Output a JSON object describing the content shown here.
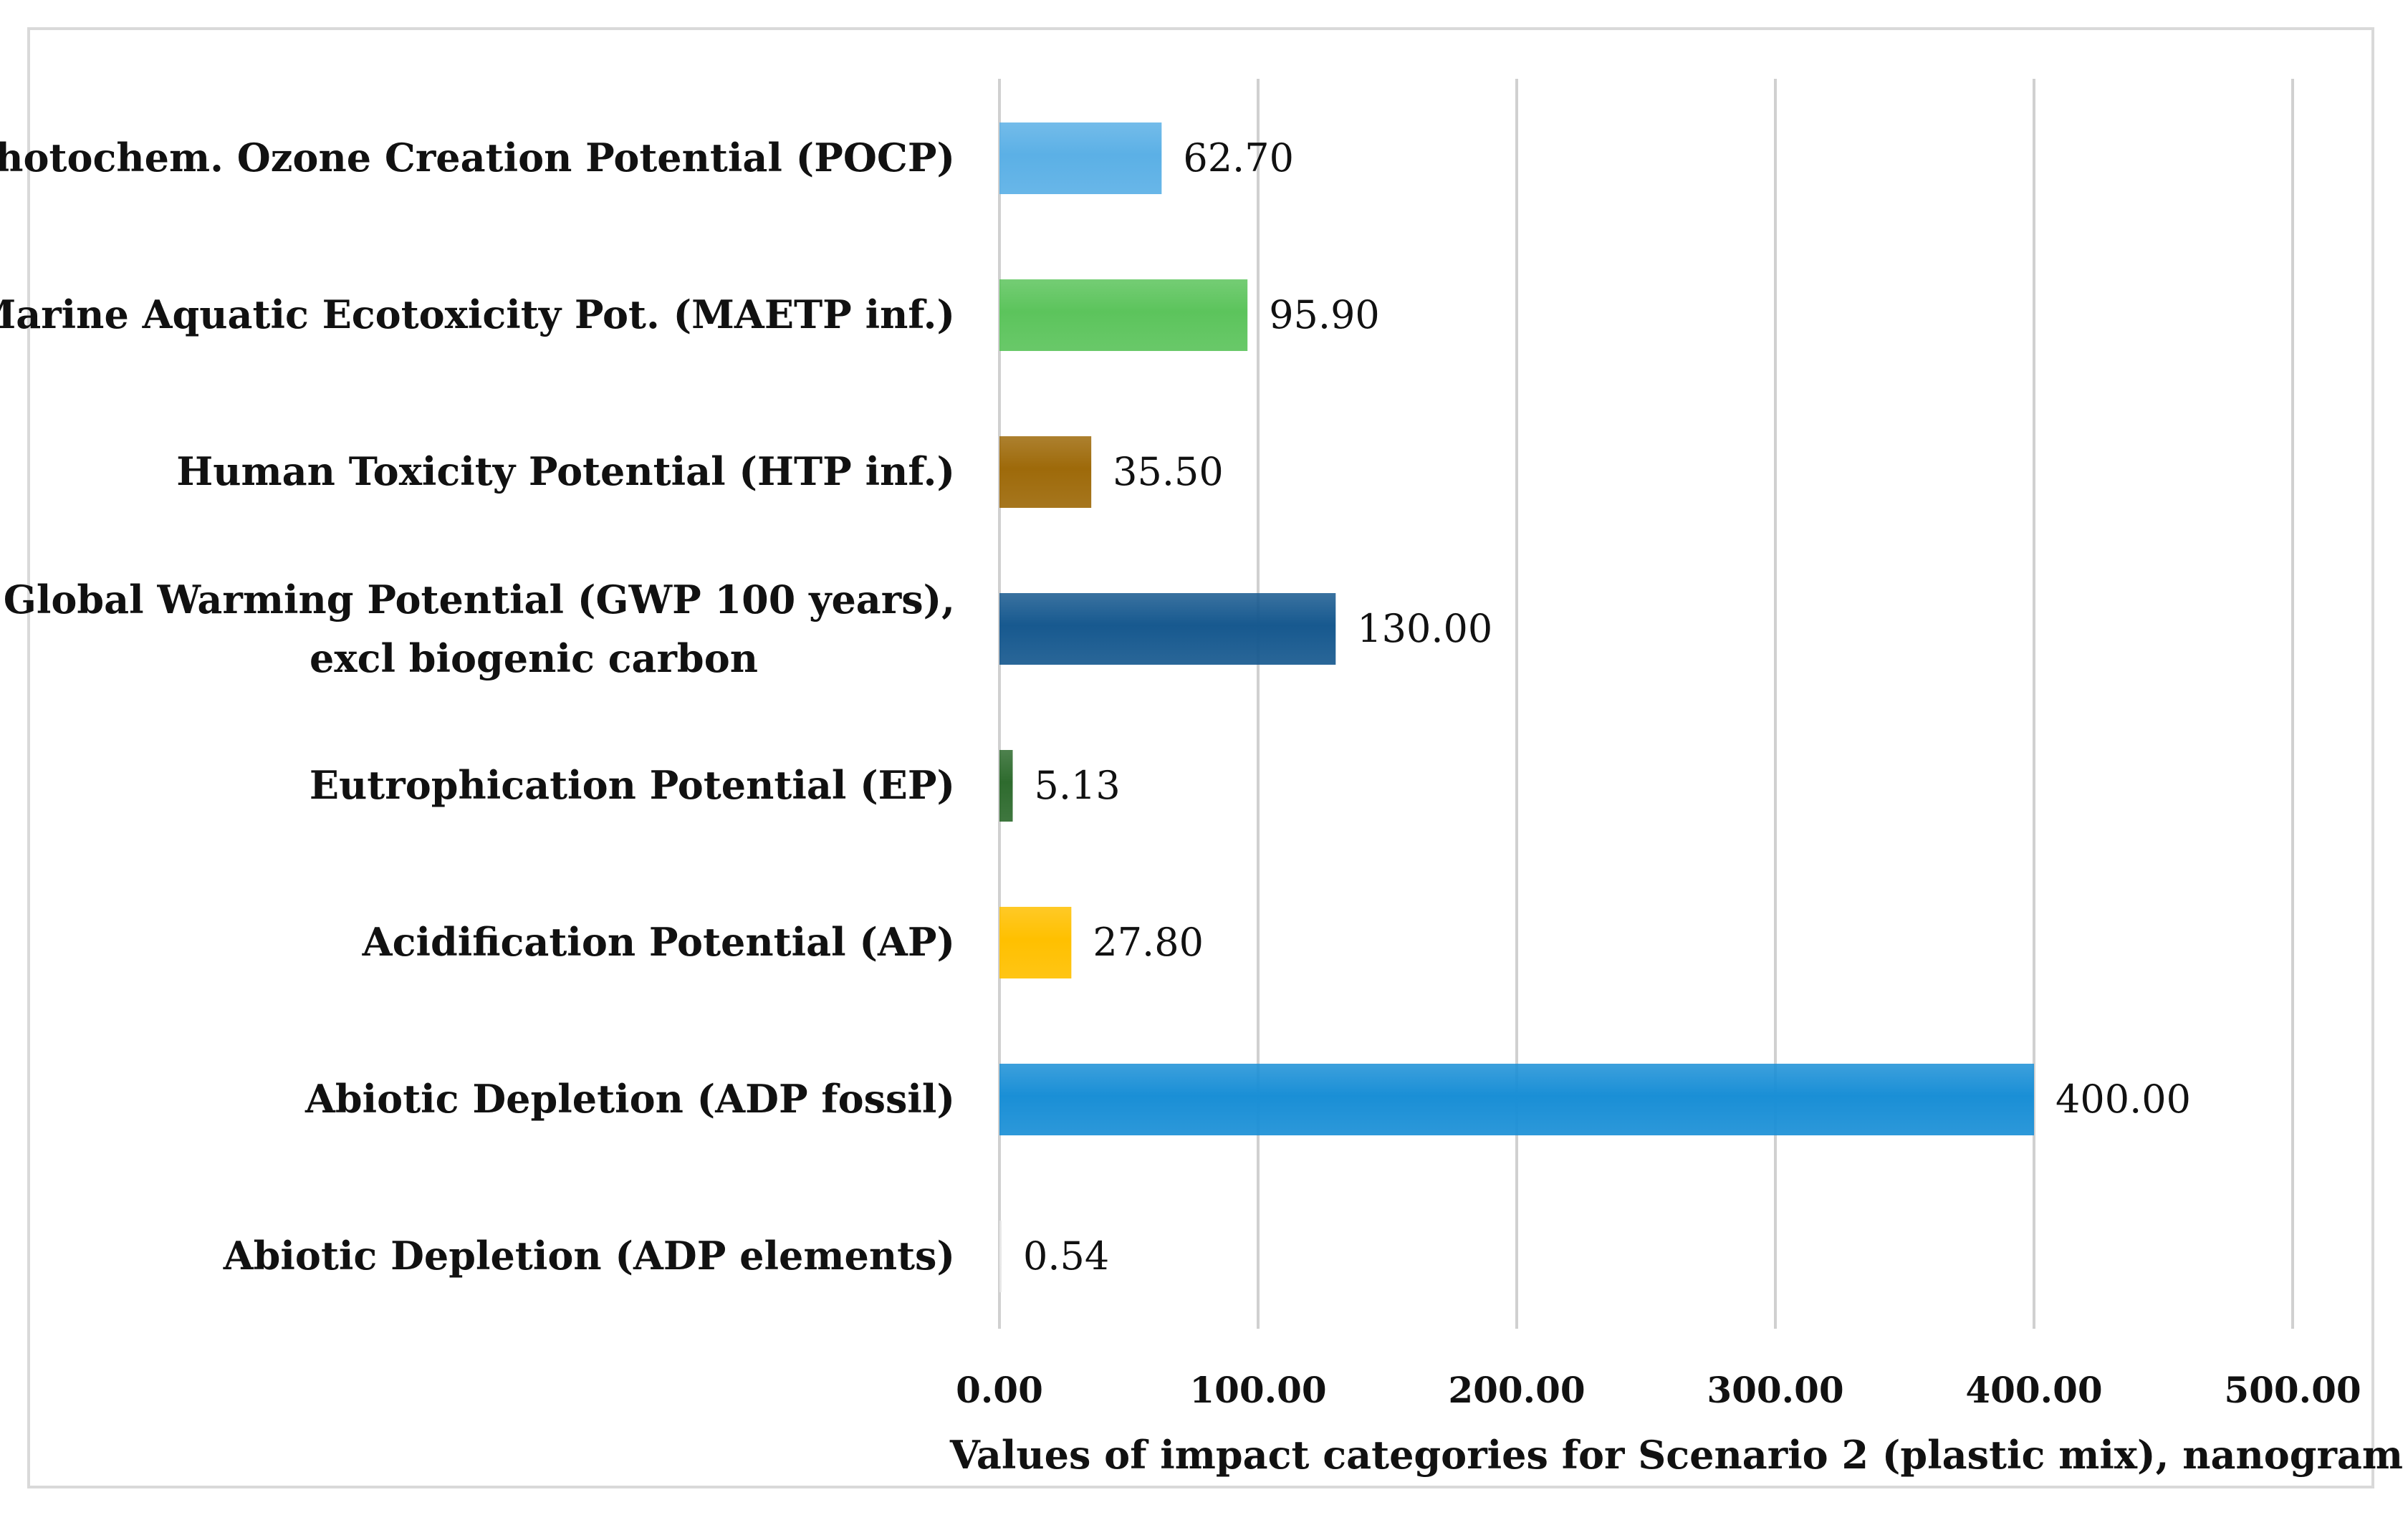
{
  "chart_data": {
    "type": "bar",
    "orientation": "horizontal",
    "categories": [
      "Photochem. Ozone Creation Potential (POCP)",
      "Marine Aquatic Ecotoxicity Pot. (MAETP inf.)",
      "Human Toxicity Potential (HTP inf.)",
      "Global Warming Potential (GWP 100 years), excl biogenic carbon",
      "Eutrophication Potential (EP)",
      "Acidification Potential (AP)",
      "Abiotic Depletion (ADP fossil)",
      "Abiotic Depletion (ADP elements)"
    ],
    "category_lines": [
      [
        "Photochem. Ozone Creation Potential (POCP)"
      ],
      [
        "Marine Aquatic Ecotoxicity Pot. (MAETP inf.)"
      ],
      [
        "Human Toxicity Potential (HTP inf.)"
      ],
      [
        "Global Warming Potential (GWP 100 years),",
        "excl biogenic carbon"
      ],
      [
        "Eutrophication Potential (EP)"
      ],
      [
        "Acidification Potential (AP)"
      ],
      [
        "Abiotic Depletion (ADP fossil)"
      ],
      [
        "Abiotic Depletion (ADP elements)"
      ]
    ],
    "values": [
      62.7,
      95.9,
      35.5,
      130.0,
      5.13,
      27.8,
      400.0,
      0.54
    ],
    "value_labels": [
      "62.70",
      "95.90",
      "35.50",
      "130.00",
      "5.13",
      "27.80",
      "400.00",
      "0.54"
    ],
    "colors": [
      "#5bb0e6",
      "#5cc45c",
      "#9e6a0a",
      "#17598f",
      "#2e6b2e",
      "#ffc000",
      "#1a8fd6",
      "#e8e8e8"
    ],
    "xlim": [
      0,
      500
    ],
    "ticks": [
      0,
      100,
      200,
      300,
      400,
      500
    ],
    "tick_labels": [
      "0.00",
      "100.00",
      "200.00",
      "300.00",
      "400.00",
      "500.00"
    ],
    "xlabel": "Values of impact categories for Scenario 2 (plastic mix), nanogram",
    "ylabel": "",
    "title": "",
    "grid": true,
    "legend": "none"
  }
}
